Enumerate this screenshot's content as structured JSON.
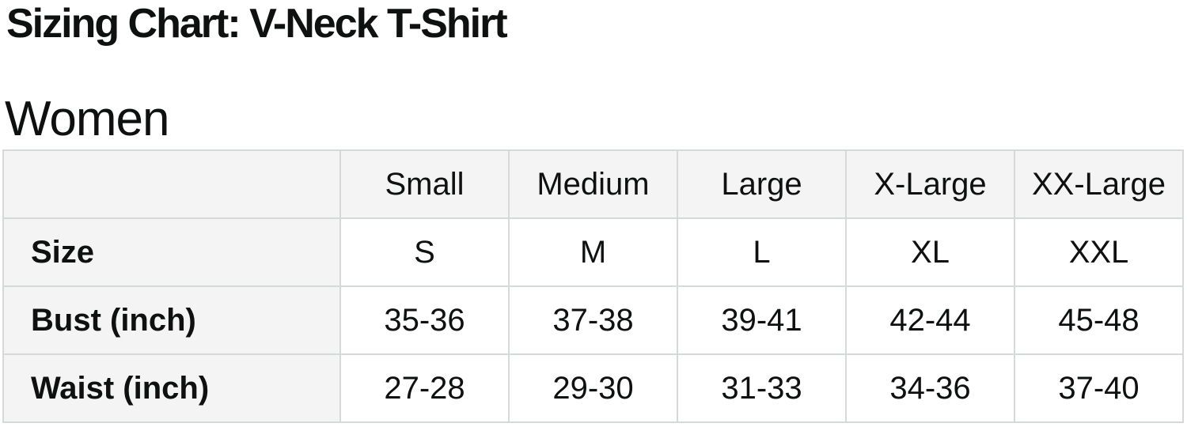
{
  "page": {
    "title": "Sizing Chart: V-Neck T-Shirt",
    "section_heading": "Women"
  },
  "colors": {
    "text": "#0f1111",
    "border": "#d5d9d9",
    "header_bg": "#f4f4f4",
    "label_bg": "#f4f4f4",
    "cell_bg": "#ffffff"
  },
  "table": {
    "columns": [
      "",
      "Small",
      "Medium",
      "Large",
      "X-Large",
      "XX-Large"
    ],
    "rows": [
      {
        "label": "Size",
        "values": [
          "S",
          "M",
          "L",
          "XL",
          "XXL"
        ]
      },
      {
        "label": "Bust (inch)",
        "values": [
          "35-36",
          "37-38",
          "39-41",
          "42-44",
          "45-48"
        ]
      },
      {
        "label": "Waist (inch)",
        "values": [
          "27-28",
          "29-30",
          "31-33",
          "34-36",
          "37-40"
        ]
      }
    ]
  }
}
